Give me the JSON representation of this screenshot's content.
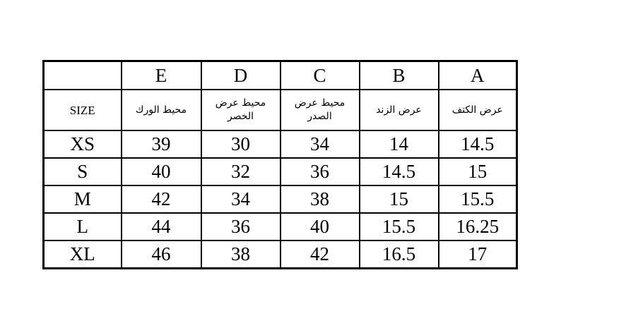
{
  "columns": {
    "letters": [
      "",
      "E",
      "D",
      "C",
      "B",
      "A"
    ],
    "descriptions": [
      "SIZE",
      "محيط الورك",
      "محيط عرض الخصر",
      "محيط عرض الصدر",
      "عرض الزند",
      "عرض الكتف"
    ]
  },
  "rows": [
    {
      "size": "XS",
      "values": [
        "39",
        "30",
        "34",
        "14",
        "14.5"
      ]
    },
    {
      "size": "S",
      "values": [
        "40",
        "32",
        "36",
        "14.5",
        "15"
      ]
    },
    {
      "size": "M",
      "values": [
        "42",
        "34",
        "38",
        "15",
        "15.5"
      ]
    },
    {
      "size": "L",
      "values": [
        "44",
        "36",
        "40",
        "15.5",
        "16.25"
      ]
    },
    {
      "size": "XL",
      "values": [
        "46",
        "38",
        "42",
        "16.5",
        "17"
      ]
    }
  ]
}
